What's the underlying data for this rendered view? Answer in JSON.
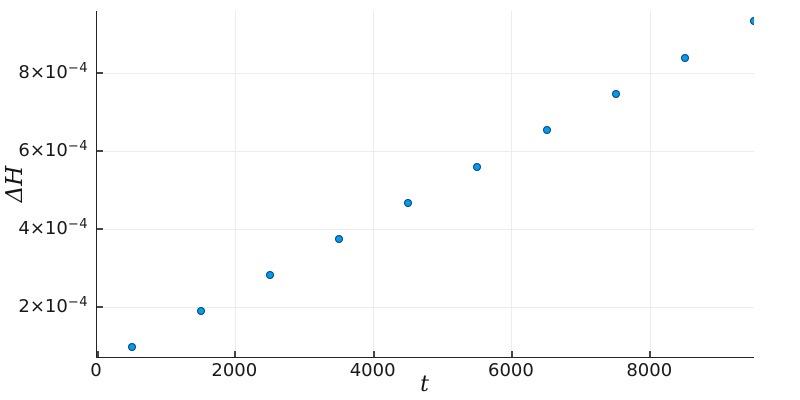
{
  "chart_data": {
    "type": "scatter",
    "title": "",
    "xlabel": "t",
    "ylabel": "ΔH",
    "x": [
      500,
      1500,
      2500,
      3500,
      4500,
      5500,
      6500,
      7500,
      8500,
      9500
    ],
    "y": [
      9.7e-05,
      0.00019,
      0.000282,
      0.000374,
      0.000467,
      0.000559,
      0.000653,
      0.000746,
      0.000838,
      0.000933
    ],
    "xlim": [
      0,
      9500
    ],
    "ylim": [
      7.2e-05,
      0.000959
    ],
    "xticks": [
      {
        "v": 0,
        "label": "0"
      },
      {
        "v": 2000,
        "label": "2000"
      },
      {
        "v": 4000,
        "label": "4000"
      },
      {
        "v": 6000,
        "label": "6000"
      },
      {
        "v": 8000,
        "label": "8000"
      }
    ],
    "yticks": [
      {
        "v": 0.0002,
        "mantissa": "2×10",
        "exponent": "−4"
      },
      {
        "v": 0.0004,
        "mantissa": "4×10",
        "exponent": "−4"
      },
      {
        "v": 0.0006,
        "mantissa": "6×10",
        "exponent": "−4"
      },
      {
        "v": 0.0008,
        "mantissa": "8×10",
        "exponent": "−4"
      }
    ],
    "grid": true,
    "legend": "none",
    "colors": {
      "marker_fill": "#009af9",
      "marker_stroke": "rgba(0,0,0,0.55)",
      "axis": "#242424",
      "grid": "#ececec",
      "tick_text": "#191919"
    }
  }
}
